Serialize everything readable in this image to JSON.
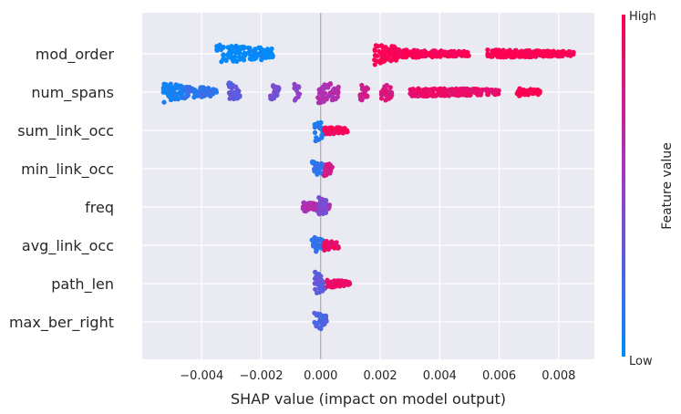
{
  "chart_data": {
    "type": "scatter",
    "subtype": "shap-beeswarm",
    "title": "",
    "xlabel": "SHAP value (impact on model output)",
    "ylabel": "",
    "xlim": [
      -0.006,
      0.0092
    ],
    "xticks": [
      -0.004,
      -0.002,
      0.0,
      0.002,
      0.004,
      0.006,
      0.008
    ],
    "xtick_labels": [
      "−0.004",
      "−0.002",
      "0.000",
      "0.002",
      "0.004",
      "0.006",
      "0.008"
    ],
    "grid": true,
    "zero_line": 0,
    "features": [
      {
        "name": "mod_order",
        "clusters": [
          {
            "from": -0.0035,
            "to": -0.0016,
            "feature_value": 0.0,
            "spread": 0.8
          },
          {
            "from": 0.0018,
            "to": 0.0026,
            "feature_value": 1.0,
            "spread": 1.0
          },
          {
            "from": 0.0026,
            "to": 0.005,
            "feature_value": 0.98,
            "spread": 0.35
          },
          {
            "from": 0.0056,
            "to": 0.0085,
            "feature_value": 1.0,
            "spread": 0.35
          }
        ]
      },
      {
        "name": "num_spans",
        "clusters": [
          {
            "from": -0.0053,
            "to": -0.0046,
            "feature_value": 0.05,
            "spread": 0.9
          },
          {
            "from": -0.0046,
            "to": -0.0035,
            "feature_value": 0.15,
            "spread": 0.55
          },
          {
            "from": -0.0031,
            "to": -0.0027,
            "feature_value": 0.3,
            "spread": 0.8
          },
          {
            "from": -0.0017,
            "to": -0.0014,
            "feature_value": 0.4,
            "spread": 0.7
          },
          {
            "from": -0.0009,
            "to": -0.0007,
            "feature_value": 0.45,
            "spread": 0.8
          },
          {
            "from": -0.0001,
            "to": 0.0006,
            "feature_value": 0.6,
            "spread": 1.0
          },
          {
            "from": 0.0013,
            "to": 0.0016,
            "feature_value": 0.75,
            "spread": 0.8
          },
          {
            "from": 0.002,
            "to": 0.0024,
            "feature_value": 0.82,
            "spread": 0.9
          },
          {
            "from": 0.003,
            "to": 0.006,
            "feature_value": 0.9,
            "spread": 0.4
          },
          {
            "from": 0.0066,
            "to": 0.0074,
            "feature_value": 1.0,
            "spread": 0.35
          }
        ]
      },
      {
        "name": "sum_link_occ",
        "clusters": [
          {
            "from": -0.00025,
            "to": 0.0001,
            "feature_value": 0.1,
            "spread": 1.0
          },
          {
            "from": 0.0001,
            "to": 0.0009,
            "feature_value": 0.95,
            "spread": 0.35
          }
        ]
      },
      {
        "name": "min_link_occ",
        "clusters": [
          {
            "from": -0.0003,
            "to": 0.0001,
            "feature_value": 0.15,
            "spread": 0.7
          },
          {
            "from": 0.0001,
            "to": 0.0004,
            "feature_value": 0.8,
            "spread": 0.8
          }
        ]
      },
      {
        "name": "freq",
        "clusters": [
          {
            "from": -0.0006,
            "to": 0.0003,
            "feature_value": 0.6,
            "spread": 0.4
          },
          {
            "from": -0.0001,
            "to": 0.0002,
            "feature_value": 0.4,
            "spread": 1.0
          }
        ]
      },
      {
        "name": "avg_link_occ",
        "clusters": [
          {
            "from": -0.0003,
            "to": 0.0001,
            "feature_value": 0.15,
            "spread": 0.8
          },
          {
            "from": 0.0001,
            "to": 0.0006,
            "feature_value": 0.9,
            "spread": 0.45
          }
        ]
      },
      {
        "name": "path_len",
        "clusters": [
          {
            "from": -0.0002,
            "to": 0.0002,
            "feature_value": 0.3,
            "spread": 1.0
          },
          {
            "from": 0.0002,
            "to": 0.001,
            "feature_value": 0.9,
            "spread": 0.35
          }
        ]
      },
      {
        "name": "max_ber_right",
        "clusters": [
          {
            "from": -0.00025,
            "to": 0.0002,
            "feature_value": 0.25,
            "spread": 0.9
          }
        ]
      }
    ],
    "colorbar": {
      "title": "Feature value",
      "high_label": "High",
      "low_label": "Low",
      "low_color": "#008bfb",
      "high_color": "#ff0051",
      "mid_color": "#9b3cc8"
    },
    "background": "#eaeaf2",
    "grid_color": "#ffffff"
  }
}
